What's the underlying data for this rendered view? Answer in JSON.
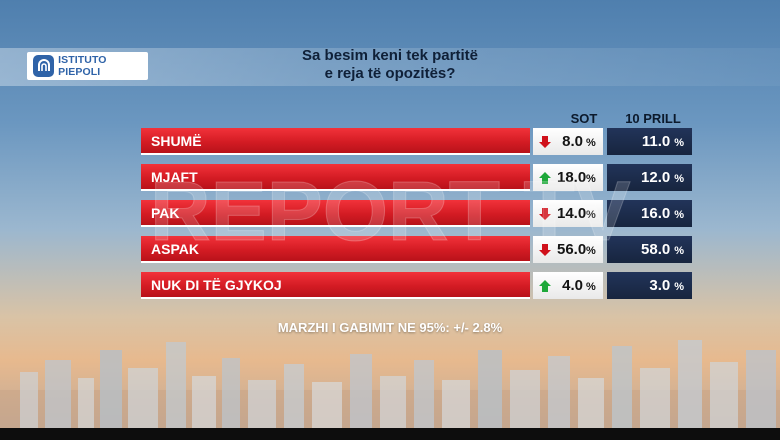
{
  "logo": {
    "text": "ISTITUTO PIEPOLI"
  },
  "question": {
    "line1": "Sa besim keni tek partitë",
    "line2": "e reja të opozitës?"
  },
  "columns": {
    "sot": "SOT",
    "previous": "10 PRILL"
  },
  "rows": [
    {
      "label": "SHUMË",
      "sot": "8.0",
      "trend": "down",
      "previous": "11.0"
    },
    {
      "label": "MJAFT",
      "sot": "18.0",
      "trend": "up",
      "previous": "12.0"
    },
    {
      "label": "PAK",
      "sot": "14.0",
      "trend": "down",
      "previous": "16.0"
    },
    {
      "label": "ASPAK",
      "sot": "56.0",
      "trend": "down",
      "previous": "58.0"
    },
    {
      "label": "NUK DI TË GJYKOJ",
      "sot": "4.0",
      "trend": "up",
      "previous": "3.0"
    }
  ],
  "percent_sign": "%",
  "margin_note": "MARZHI I GABIMIT NE 95%: +/- 2.8%",
  "watermark": "REPORT TV",
  "colors": {
    "up": "#1ea83a",
    "down": "#d0111b",
    "bar": "#e0242c",
    "previous_box": "#1c2c4a"
  },
  "chart_data": {
    "type": "table",
    "title": "Sa besim keni tek partitë e reja të opozitës?",
    "columns": [
      "SOT",
      "10 PRILL"
    ],
    "categories": [
      "SHUMË",
      "MJAFT",
      "PAK",
      "ASPAK",
      "NUK DI TË GJYKOJ"
    ],
    "series": [
      {
        "name": "SOT",
        "values": [
          8.0,
          18.0,
          14.0,
          56.0,
          4.0
        ]
      },
      {
        "name": "10 PRILL",
        "values": [
          11.0,
          12.0,
          16.0,
          58.0,
          3.0
        ]
      }
    ],
    "unit": "%",
    "note": "MARZHI I GABIMIT NE 95%: +/- 2.8%"
  }
}
